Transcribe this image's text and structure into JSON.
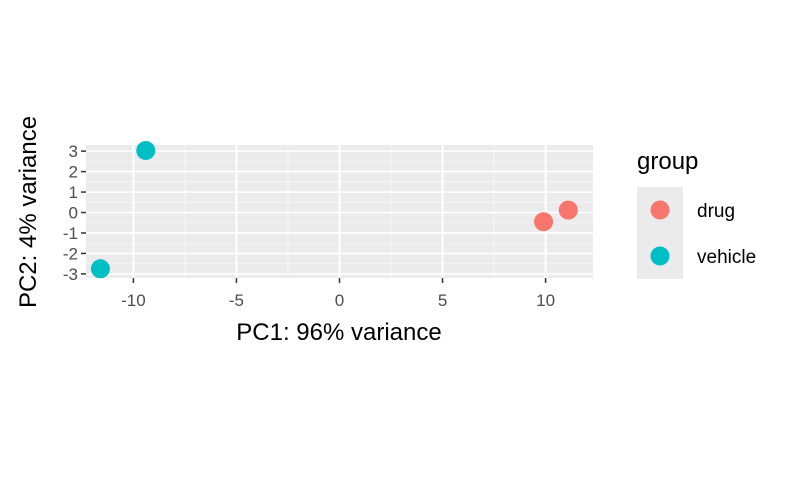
{
  "chart_data": {
    "type": "scatter",
    "xlabel": "PC1: 96% variance",
    "ylabel": "PC2: 4% variance",
    "xlim": [
      -12.3,
      12.3
    ],
    "ylim": [
      -3.2,
      3.3
    ],
    "x_ticks": [
      -10,
      -5,
      0,
      5,
      10
    ],
    "x_tick_labels": [
      "-10",
      "-5",
      "0",
      "5",
      "10"
    ],
    "y_ticks": [
      3,
      2,
      1,
      0,
      -1,
      -2,
      -3
    ],
    "y_tick_labels": [
      "3",
      "2",
      "1",
      "0",
      "-1",
      "-2",
      "-3"
    ],
    "grid": true,
    "legend_position": "right",
    "legend_title": "group",
    "series": [
      {
        "name": "drug",
        "color": "#F8766D",
        "points": [
          {
            "x": 9.9,
            "y": -0.45
          },
          {
            "x": 11.1,
            "y": 0.12
          }
        ]
      },
      {
        "name": "vehicle",
        "color": "#00BFC4",
        "points": [
          {
            "x": -9.4,
            "y": 3.03
          },
          {
            "x": -11.6,
            "y": -2.75
          }
        ]
      }
    ]
  }
}
